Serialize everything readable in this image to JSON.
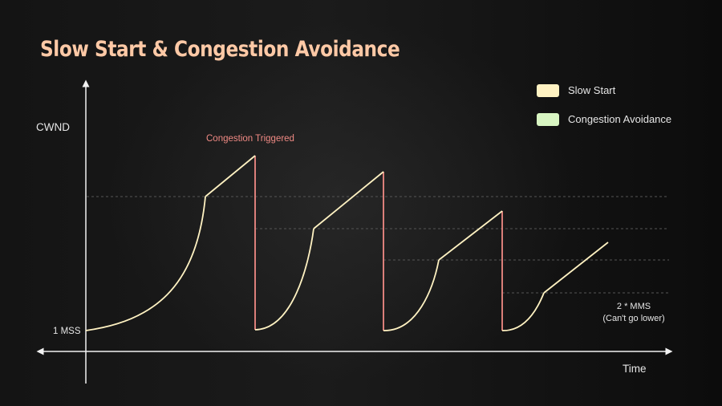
{
  "title": "Slow Start & Congestion Avoidance",
  "legend": [
    {
      "label": "Slow Start",
      "color": "#fff2c2"
    },
    {
      "label": "Congestion Avoidance",
      "color": "#d8f5c2"
    }
  ],
  "axes": {
    "y_label": "CWND",
    "x_label": "Time",
    "y_min_label": "1 MSS"
  },
  "annotations": {
    "congestion": "Congestion Triggered",
    "floor_line1": "2 * MMS",
    "floor_line2": "(Can't go lower)"
  },
  "colors": {
    "curve": "#fff2c2",
    "drop": "#f08a84",
    "axis": "#f2f2f2",
    "threshold": "#555555",
    "congestion_text": "#f08a84"
  }
}
